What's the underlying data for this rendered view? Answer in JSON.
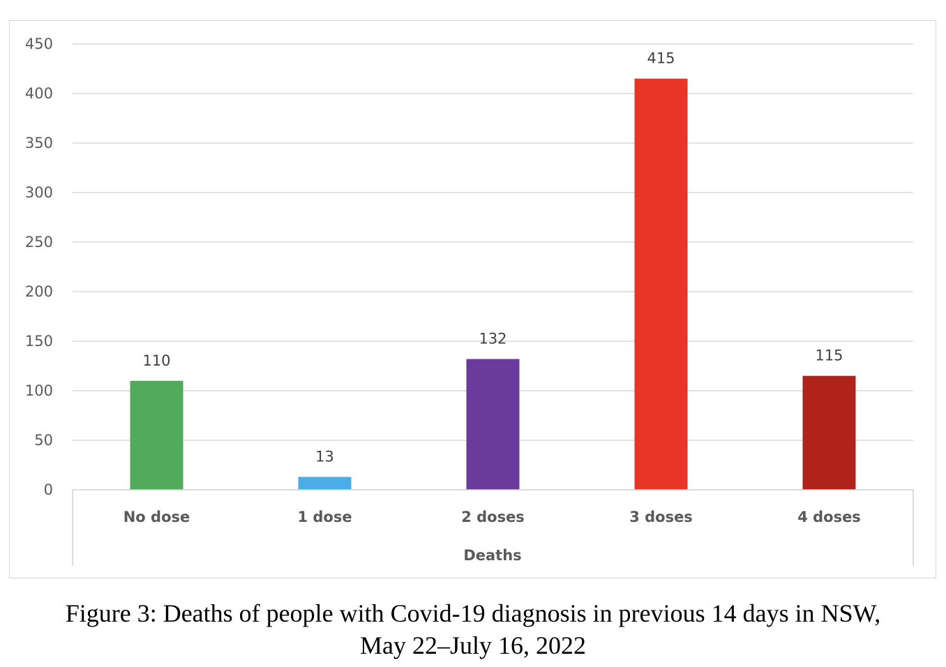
{
  "chart_data": {
    "type": "bar",
    "categories": [
      "No dose",
      "1 dose",
      "2 doses",
      "3 doses",
      "4 doses"
    ],
    "values": [
      110,
      13,
      132,
      415,
      115
    ],
    "data_labels": [
      "110",
      "13",
      "132",
      "415",
      "115"
    ],
    "colors": [
      "#52ab5a",
      "#4aaee5",
      "#6a3a9c",
      "#e93527",
      "#b0231b"
    ],
    "xlabel": "Deaths",
    "ylabel": "",
    "ylim": [
      0,
      450
    ],
    "yticks": [
      0,
      50,
      100,
      150,
      200,
      250,
      300,
      350,
      400,
      450
    ],
    "grid": true,
    "legend": "none"
  },
  "caption": {
    "line1": "Figure 3: Deaths of people with Covid-19 diagnosis in previous 14 days in NSW,",
    "line2": "May 22–July 16, 2022"
  }
}
